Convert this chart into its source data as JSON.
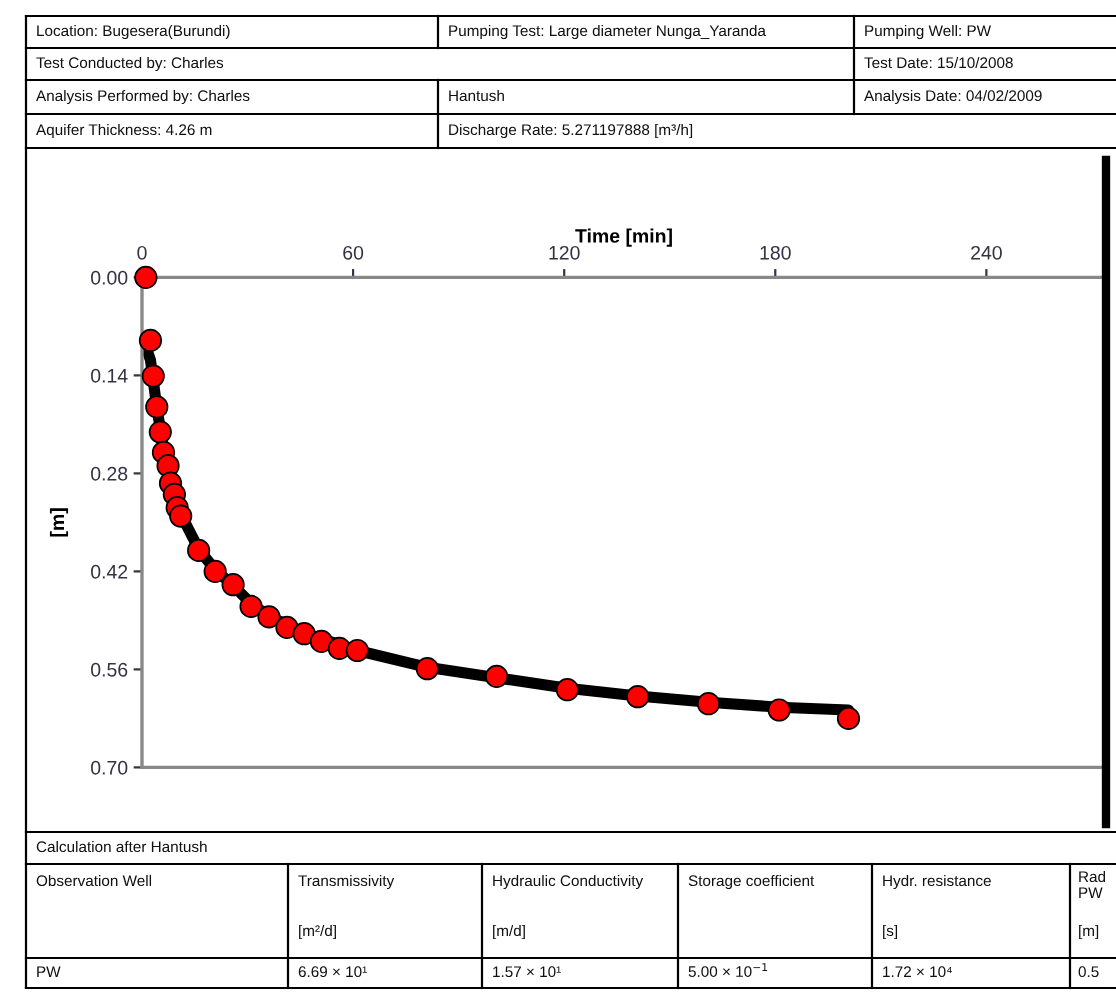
{
  "chart_data": {
    "type": "scatter",
    "xlabel": "Time [min]",
    "ylabel": "[m]",
    "xlim": [
      0,
      274
    ],
    "ylim": [
      0.7,
      0.0
    ],
    "xticks": [
      0,
      60,
      120,
      180,
      240
    ],
    "yticks": [
      {
        "value": 0.0,
        "label": "0.00"
      },
      {
        "value": 0.14,
        "label": "0.14"
      },
      {
        "value": 0.28,
        "label": "0.28"
      },
      {
        "value": 0.42,
        "label": "0.42"
      },
      {
        "value": 0.56,
        "label": "0.56"
      },
      {
        "value": 0.7,
        "label": "0.70"
      }
    ],
    "grid": false,
    "legend": false,
    "series": [
      {
        "type": "line",
        "color": "#000000",
        "marker": "none",
        "line_style": "solid",
        "x": [
          0.5,
          2.4,
          4.2,
          6.1,
          8.1,
          11.0,
          16.1,
          20.8,
          25.9,
          31.0,
          36.1,
          46.1,
          61.2,
          81.1,
          100.8,
          120.9,
          140.9,
          161.0,
          181.1,
          200.8
        ],
        "values": [
          0.09,
          0.118,
          0.185,
          0.245,
          0.292,
          0.338,
          0.388,
          0.418,
          0.44,
          0.466,
          0.484,
          0.508,
          0.533,
          0.557,
          0.572,
          0.587,
          0.598,
          0.607,
          0.614,
          0.618
        ]
      },
      {
        "color": "#ff0000",
        "marker": "circle",
        "x": [
          1.1,
          2.4,
          3.2,
          4.2,
          5.2,
          6.1,
          7.4,
          8.1,
          9.2,
          10.0,
          11.0,
          16.1,
          20.8,
          25.9,
          31.0,
          36.1,
          41.2,
          46.1,
          51.0,
          56.1,
          61.2,
          81.1,
          100.8,
          120.9,
          140.9,
          161.0,
          181.1,
          200.8
        ],
        "values": [
          0.0,
          0.09,
          0.141,
          0.185,
          0.221,
          0.25,
          0.269,
          0.294,
          0.31,
          0.329,
          0.341,
          0.39,
          0.42,
          0.439,
          0.47,
          0.485,
          0.5,
          0.509,
          0.52,
          0.53,
          0.533,
          0.559,
          0.57,
          0.589,
          0.599,
          0.609,
          0.618,
          0.63
        ]
      }
    ],
    "annotations": [
      "Location: Bugesera(Burundi)",
      "Pumping Test: Large diameter Nunga_Yaranda",
      "Pumping Well: PW",
      "Test Conducted by: Charles",
      "Test Date: 15/10/2008",
      "Analysis Performed by: Charles",
      "Hantush",
      "Analysis Date: 04/02/2009",
      "Aquifer Thickness: 4.26 m",
      "Discharge Rate: 5.271197888 [m³/h]",
      "Calculation after Hantush",
      "Observation Well",
      "Transmissivity",
      "[m²/d]",
      "Hydraulic Conductivity",
      "[m/d]",
      "Storage coefficient",
      "Hydr. resistance",
      "[s]",
      "Rad",
      "PW",
      "[m]",
      "PW",
      "6.69 × 10¹",
      "1.57 × 10¹",
      "5.00 × 10$^{−1}$",
      "1.72 × 10⁴",
      "0.5"
    ]
  }
}
